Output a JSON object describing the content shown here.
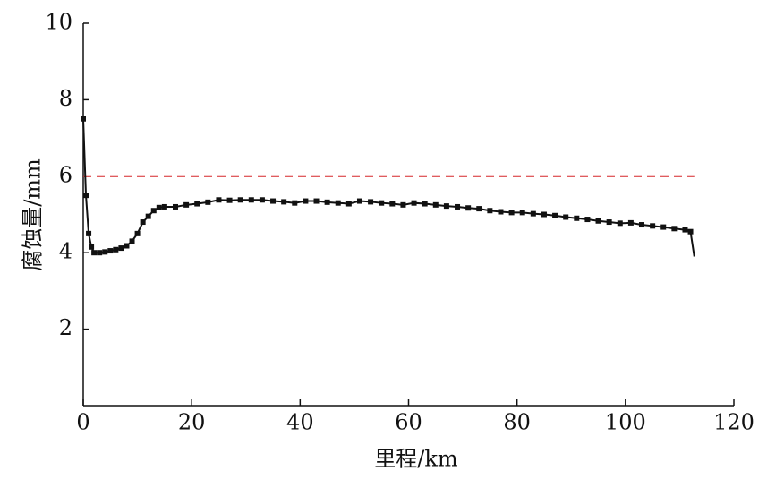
{
  "chart_data": {
    "type": "line",
    "x_label": "里程/km",
    "y_label": "腐蚀量/mm",
    "x": [
      0,
      0.5,
      1,
      1.5,
      2,
      3,
      4,
      5,
      6,
      7,
      8,
      9,
      10,
      11,
      12,
      13,
      14,
      15,
      17,
      19,
      21,
      23,
      25,
      27,
      29,
      31,
      33,
      35,
      37,
      39,
      41,
      43,
      45,
      47,
      49,
      51,
      53,
      55,
      57,
      59,
      61,
      63,
      65,
      67,
      69,
      71,
      73,
      75,
      77,
      79,
      81,
      83,
      85,
      87,
      89,
      91,
      93,
      95,
      97,
      99,
      101,
      103,
      105,
      107,
      109,
      111,
      112,
      112.7
    ],
    "series": [
      {
        "color": "#111111",
        "values": [
          7.5,
          5.5,
          4.5,
          4.15,
          4.0,
          4.0,
          4.02,
          4.05,
          4.08,
          4.12,
          4.18,
          4.3,
          4.5,
          4.8,
          4.95,
          5.1,
          5.18,
          5.2,
          5.2,
          5.25,
          5.28,
          5.32,
          5.38,
          5.37,
          5.38,
          5.38,
          5.38,
          5.35,
          5.33,
          5.3,
          5.35,
          5.35,
          5.32,
          5.3,
          5.28,
          5.35,
          5.33,
          5.3,
          5.28,
          5.25,
          5.3,
          5.28,
          5.25,
          5.22,
          5.2,
          5.17,
          5.15,
          5.1,
          5.07,
          5.05,
          5.05,
          5.02,
          5.0,
          4.97,
          4.93,
          4.9,
          4.87,
          4.83,
          4.8,
          4.77,
          4.78,
          4.73,
          4.7,
          4.67,
          4.63,
          4.6,
          4.55,
          3.9
        ]
      }
    ],
    "reference_line": {
      "value": 6,
      "color": "#d62728"
    },
    "xlim": [
      0,
      120
    ],
    "xticks": [
      0,
      20,
      40,
      60,
      80,
      100,
      120
    ],
    "ylim": [
      0,
      10
    ],
    "yticks": [
      2,
      4,
      6,
      8,
      10
    ]
  }
}
